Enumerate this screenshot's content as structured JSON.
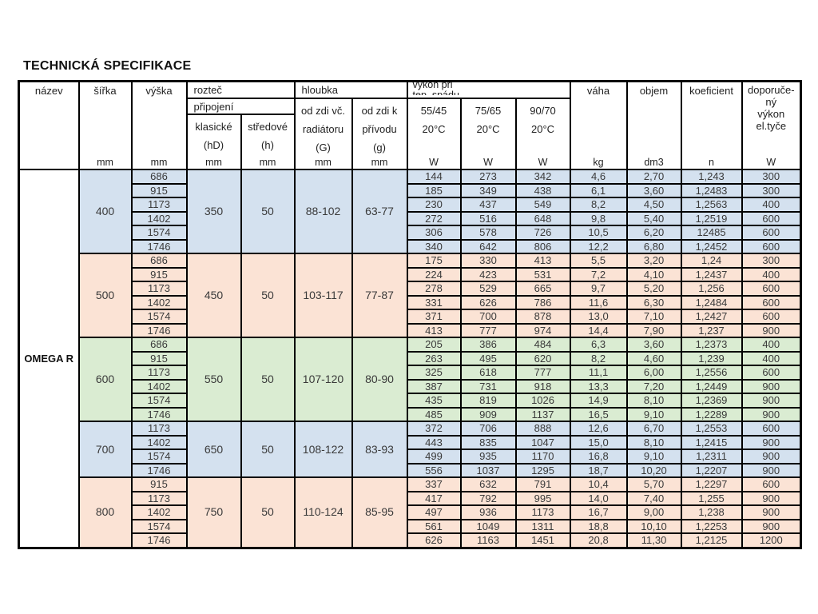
{
  "title": "TECHNICKÁ SPECIFIKACE",
  "colors": {
    "blue": "#d4e1ef",
    "salmon": "#fbe3d5",
    "green": "#daecd2"
  },
  "table": {
    "product_name": "OMEGA R",
    "headers": {
      "nazev": "název",
      "sirka": "šířka",
      "vyska": "výška",
      "roztec": "rozteč",
      "pripojeni": "připojení",
      "klasicke": [
        "klasické",
        "(hD)"
      ],
      "stredove": [
        "středové",
        "(h)"
      ],
      "hloubka": "hloubka",
      "od_zdi_radiatoru": [
        "od zdi  vč.",
        "radiátoru",
        "(G)"
      ],
      "od_zdi_privodu": [
        "od zdi  k",
        "přívodu",
        "(g)"
      ],
      "vykon": [
        "výkon při",
        "tep.  spádu"
      ],
      "t5545": [
        "55/45",
        "20°C"
      ],
      "t7565": [
        "75/65",
        "20°C"
      ],
      "t9070": [
        "90/70",
        "20°C"
      ],
      "vaha": "váha",
      "objem": "objem",
      "koeficient": "koeficient",
      "doporuceny": [
        "doporuče-",
        "ný",
        "výkon",
        "el.tyče"
      ]
    },
    "units": [
      "mm",
      "mm",
      "mm",
      "mm",
      "mm",
      "mm",
      "W",
      "W",
      "W",
      "kg",
      "dm3",
      "n",
      "W"
    ],
    "sections": [
      {
        "width": "400",
        "tint": "blue",
        "pitch_classic": "350",
        "pitch_central": "50",
        "depth_radiator": "88-102",
        "depth_privod": "63-77",
        "rows": [
          [
            "686",
            "144",
            "273",
            "342",
            "4,6",
            "2,70",
            "1,243",
            "300"
          ],
          [
            "915",
            "185",
            "349",
            "438",
            "6,1",
            "3,60",
            "1,2483",
            "300"
          ],
          [
            "1173",
            "230",
            "437",
            "549",
            "8,2",
            "4,50",
            "1,2563",
            "400"
          ],
          [
            "1402",
            "272",
            "516",
            "648",
            "9,8",
            "5,40",
            "1,2519",
            "600"
          ],
          [
            "1574",
            "306",
            "578",
            "726",
            "10,5",
            "6,20",
            "12485",
            "600"
          ],
          [
            "1746",
            "340",
            "642",
            "806",
            "12,2",
            "6,80",
            "1,2452",
            "600"
          ]
        ]
      },
      {
        "width": "500",
        "tint": "salmon",
        "pitch_classic": "450",
        "pitch_central": "50",
        "depth_radiator": "103-117",
        "depth_privod": "77-87",
        "rows": [
          [
            "686",
            "175",
            "330",
            "413",
            "5,5",
            "3,20",
            "1,24",
            "300"
          ],
          [
            "915",
            "224",
            "423",
            "531",
            "7,2",
            "4,10",
            "1,2437",
            "400"
          ],
          [
            "1173",
            "278",
            "529",
            "665",
            "9,7",
            "5,20",
            "1,256",
            "600"
          ],
          [
            "1402",
            "331",
            "626",
            "786",
            "11,6",
            "6,30",
            "1,2484",
            "600"
          ],
          [
            "1574",
            "371",
            "700",
            "878",
            "13,0",
            "7,10",
            "1,2427",
            "600"
          ],
          [
            "1746",
            "413",
            "777",
            "974",
            "14,4",
            "7,90",
            "1,237",
            "900"
          ]
        ]
      },
      {
        "width": "600",
        "tint": "green",
        "pitch_classic": "550",
        "pitch_central": "50",
        "depth_radiator": "107-120",
        "depth_privod": "80-90",
        "rows": [
          [
            "686",
            "205",
            "386",
            "484",
            "6,3",
            "3,60",
            "1,2373",
            "400"
          ],
          [
            "915",
            "263",
            "495",
            "620",
            "8,2",
            "4,60",
            "1,239",
            "400"
          ],
          [
            "1173",
            "325",
            "618",
            "777",
            "11,1",
            "6,00",
            "1,2556",
            "600"
          ],
          [
            "1402",
            "387",
            "731",
            "918",
            "13,3",
            "7,20",
            "1,2449",
            "900"
          ],
          [
            "1574",
            "435",
            "819",
            "1026",
            "14,9",
            "8,10",
            "1,2369",
            "900"
          ],
          [
            "1746",
            "485",
            "909",
            "1137",
            "16,5",
            "9,10",
            "1,2289",
            "900"
          ]
        ]
      },
      {
        "width": "700",
        "tint": "blue",
        "pitch_classic": "650",
        "pitch_central": "50",
        "depth_radiator": "108-122",
        "depth_privod": "83-93",
        "rows": [
          [
            "1173",
            "372",
            "706",
            "888",
            "12,6",
            "6,70",
            "1,2553",
            "600"
          ],
          [
            "1402",
            "443",
            "835",
            "1047",
            "15,0",
            "8,10",
            "1,2415",
            "900"
          ],
          [
            "1574",
            "499",
            "935",
            "1170",
            "16,8",
            "9,10",
            "1,2311",
            "900"
          ],
          [
            "1746",
            "556",
            "1037",
            "1295",
            "18,7",
            "10,20",
            "1,2207",
            "900"
          ]
        ]
      },
      {
        "width": "800",
        "tint": "salmon",
        "pitch_classic": "750",
        "pitch_central": "50",
        "depth_radiator": "110-124",
        "depth_privod": "85-95",
        "rows": [
          [
            "915",
            "337",
            "632",
            "791",
            "10,4",
            "5,70",
            "1,2297",
            "600"
          ],
          [
            "1173",
            "417",
            "792",
            "995",
            "14,0",
            "7,40",
            "1,255",
            "900"
          ],
          [
            "1402",
            "497",
            "936",
            "1173",
            "16,7",
            "9,00",
            "1,238",
            "900"
          ],
          [
            "1574",
            "561",
            "1049",
            "1311",
            "18,8",
            "10,10",
            "1,2253",
            "900"
          ],
          [
            "1746",
            "626",
            "1163",
            "1451",
            "20,8",
            "11,30",
            "1,2125",
            "1200"
          ]
        ]
      }
    ]
  }
}
